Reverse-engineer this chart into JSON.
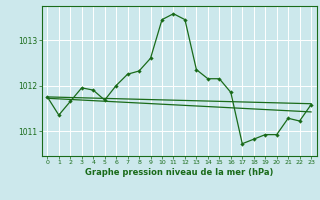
{
  "title": "Graphe pression niveau de la mer (hPa)",
  "bg_color": "#cce8ec",
  "grid_color": "#ffffff",
  "line_color": "#1a6b1a",
  "xlim": [
    -0.5,
    23.5
  ],
  "ylim": [
    1010.45,
    1013.75
  ],
  "yticks": [
    1011,
    1012,
    1013
  ],
  "xticks": [
    0,
    1,
    2,
    3,
    4,
    5,
    6,
    7,
    8,
    9,
    10,
    11,
    12,
    13,
    14,
    15,
    16,
    17,
    18,
    19,
    20,
    21,
    22,
    23
  ],
  "series1_x": [
    0,
    1,
    2,
    3,
    4,
    5,
    6,
    7,
    8,
    9,
    10,
    11,
    12,
    13,
    14,
    15,
    16,
    17,
    18,
    19,
    20,
    21,
    22,
    23
  ],
  "series1_y": [
    1011.75,
    1011.35,
    1011.65,
    1011.95,
    1011.9,
    1011.68,
    1012.0,
    1012.25,
    1012.32,
    1012.6,
    1013.45,
    1013.58,
    1013.45,
    1012.35,
    1012.15,
    1012.15,
    1011.85,
    1010.72,
    1010.82,
    1010.92,
    1010.92,
    1011.28,
    1011.22,
    1011.58
  ],
  "trend1_x": [
    0,
    23
  ],
  "trend1_y": [
    1011.75,
    1011.6
  ],
  "trend2_x": [
    0,
    23
  ],
  "trend2_y": [
    1011.72,
    1011.42
  ],
  "figsize": [
    3.2,
    2.0
  ],
  "dpi": 100
}
